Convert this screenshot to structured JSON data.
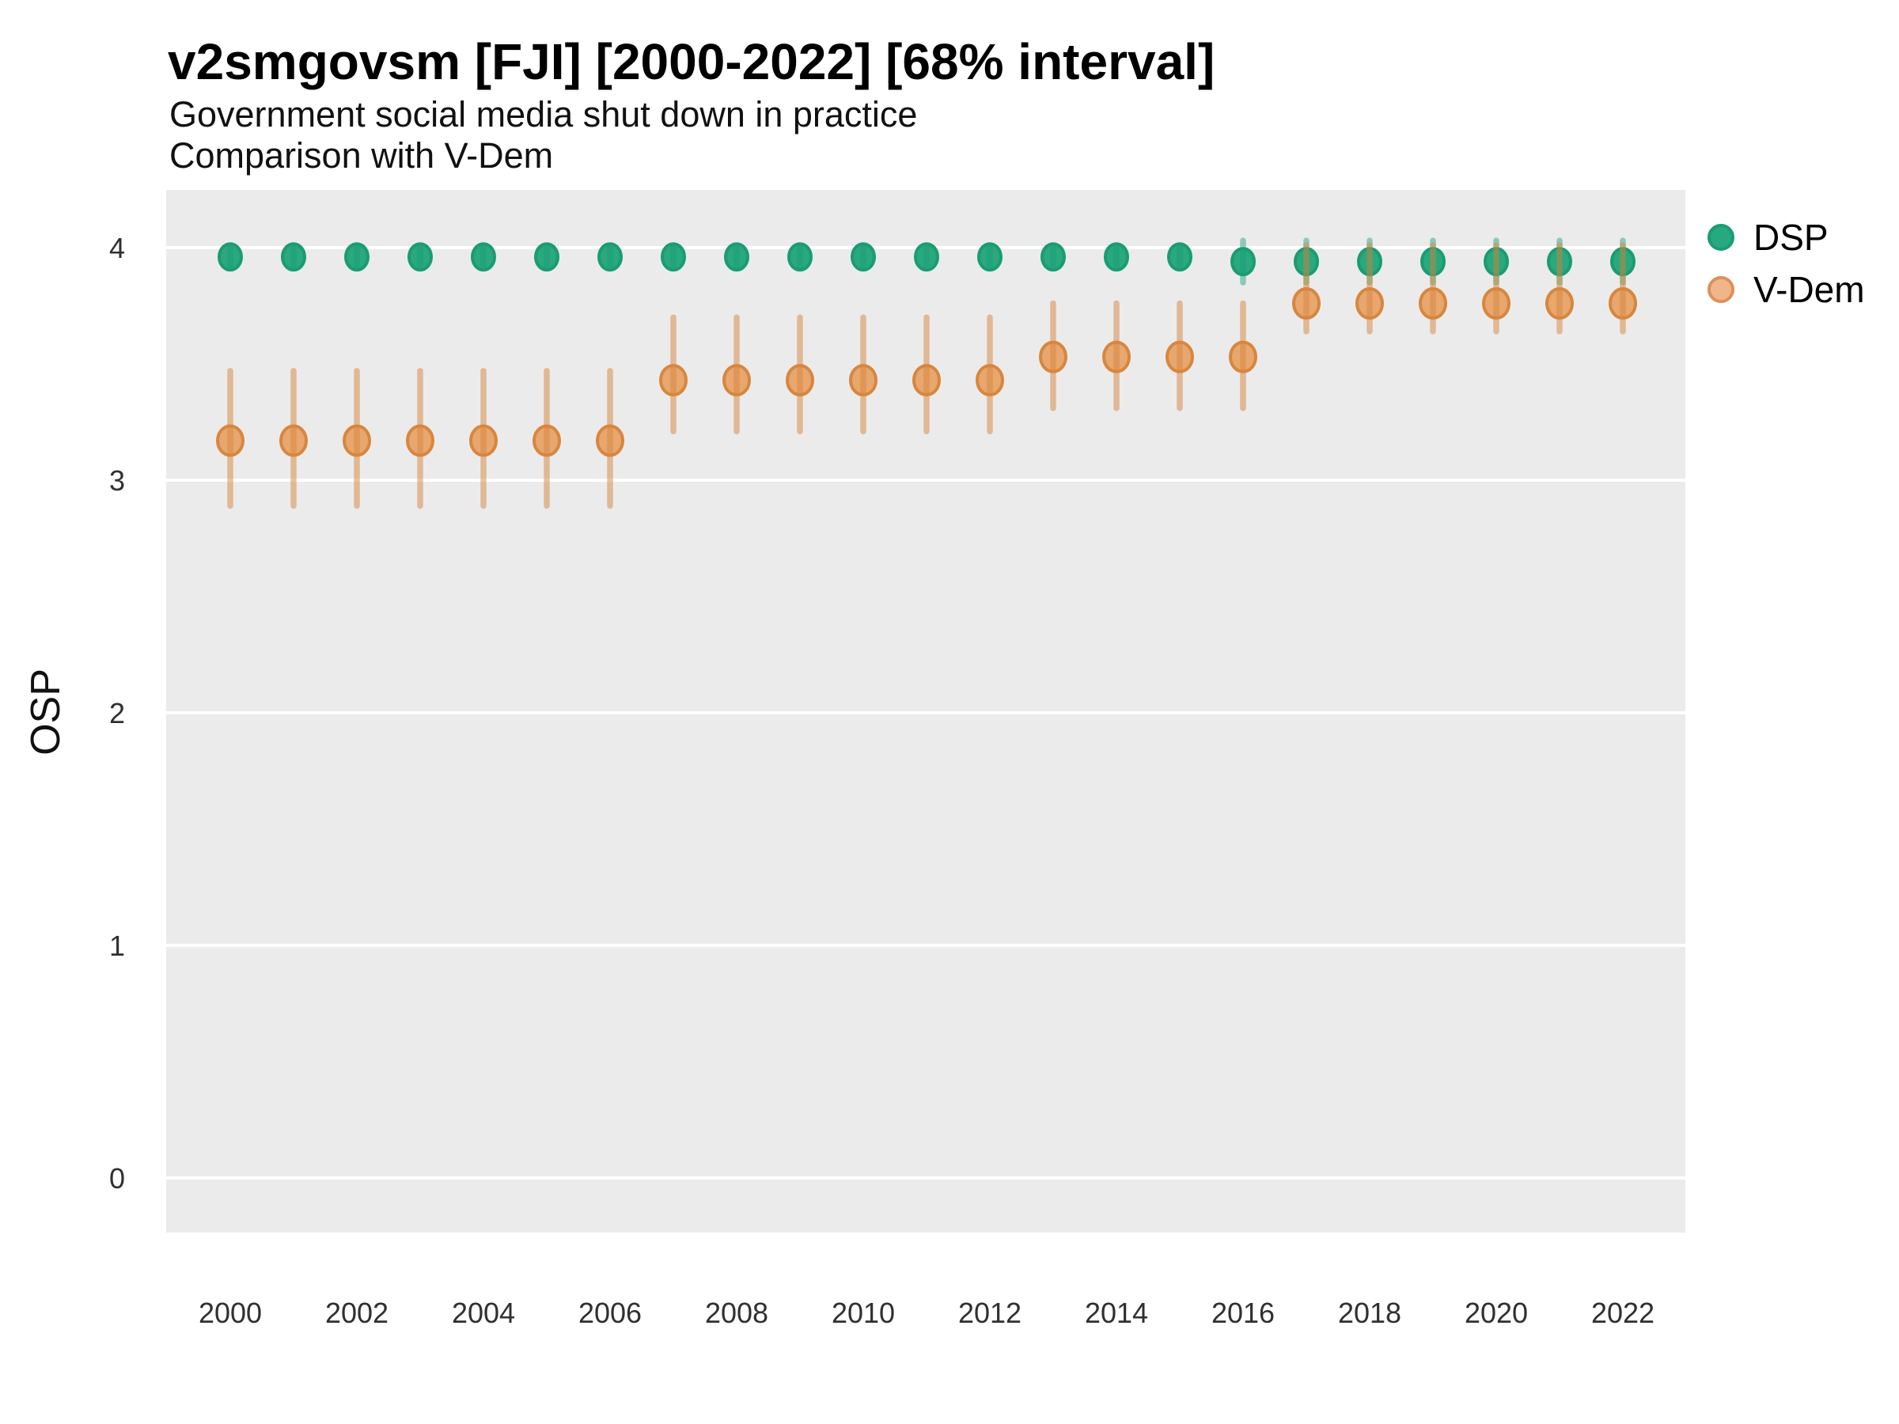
{
  "header": {
    "title": "v2smgovsm [FJI] [2000-2022] [68% interval]",
    "subtitle1": "Government social media shut down in practice",
    "subtitle2": "Comparison with V-Dem"
  },
  "axes": {
    "y_title": "OSP",
    "y_tick_labels": [
      "0",
      "1",
      "2",
      "3",
      "4"
    ],
    "x_tick_labels": [
      "2000",
      "2002",
      "2004",
      "2006",
      "2008",
      "2010",
      "2012",
      "2014",
      "2016",
      "2018",
      "2020",
      "2022"
    ]
  },
  "legend": {
    "entries": [
      {
        "label": "DSP"
      },
      {
        "label": "V-Dem"
      }
    ]
  },
  "colors": {
    "panel_background": "#EBEBEB",
    "gridline": "#FFFFFF",
    "tick_text": "#303030",
    "dsp_fill": "#2AA87E",
    "dsp_stroke": "#1A9C73",
    "dsp_bar": "#1B9E77",
    "vdem_fill": "#E7A76E",
    "vdem_stroke": "#D8863E",
    "vdem_bar": "#D8863E"
  },
  "chart_data": {
    "type": "scatter",
    "title": "v2smgovsm [FJI] [2000-2022] [68% interval]",
    "subtitle": "Government social media shut down in practice — Comparison with V-Dem",
    "xlabel": "",
    "ylabel": "OSP",
    "x": [
      2000,
      2001,
      2002,
      2003,
      2004,
      2005,
      2006,
      2007,
      2008,
      2009,
      2010,
      2011,
      2012,
      2013,
      2014,
      2015,
      2016,
      2017,
      2018,
      2019,
      2020,
      2021,
      2022
    ],
    "x_ticks": [
      2000,
      2002,
      2004,
      2006,
      2008,
      2010,
      2012,
      2014,
      2016,
      2018,
      2020,
      2022
    ],
    "y_ticks": [
      0,
      1,
      2,
      3,
      4
    ],
    "ylim": [
      -0.24,
      4.25
    ],
    "grid": "horizontal-major-only",
    "legend_position": "right",
    "interval": "68%",
    "series": [
      {
        "name": "DSP",
        "values": [
          3.96,
          3.96,
          3.96,
          3.96,
          3.96,
          3.96,
          3.96,
          3.96,
          3.96,
          3.96,
          3.96,
          3.96,
          3.96,
          3.96,
          3.96,
          3.96,
          3.94,
          3.94,
          3.94,
          3.94,
          3.94,
          3.94,
          3.94
        ],
        "lo": [
          3.92,
          3.92,
          3.92,
          3.92,
          3.92,
          3.92,
          3.92,
          3.92,
          3.92,
          3.92,
          3.92,
          3.92,
          3.92,
          3.92,
          3.92,
          3.92,
          3.85,
          3.85,
          3.85,
          3.85,
          3.85,
          3.85,
          3.85
        ],
        "hi": [
          4.0,
          4.0,
          4.0,
          4.0,
          4.0,
          4.0,
          4.0,
          4.0,
          4.0,
          4.0,
          4.0,
          4.0,
          4.0,
          4.0,
          4.0,
          4.0,
          4.03,
          4.03,
          4.03,
          4.03,
          4.03,
          4.03,
          4.03
        ]
      },
      {
        "name": "V-Dem",
        "values": [
          3.17,
          3.17,
          3.17,
          3.17,
          3.17,
          3.17,
          3.17,
          3.43,
          3.43,
          3.43,
          3.43,
          3.43,
          3.43,
          3.53,
          3.53,
          3.53,
          3.53,
          3.76,
          3.76,
          3.76,
          3.76,
          3.76,
          3.76
        ],
        "lo": [
          2.89,
          2.89,
          2.89,
          2.89,
          2.89,
          2.89,
          2.89,
          3.21,
          3.21,
          3.21,
          3.21,
          3.21,
          3.21,
          3.31,
          3.31,
          3.31,
          3.31,
          3.64,
          3.64,
          3.64,
          3.64,
          3.64,
          3.64
        ],
        "hi": [
          3.47,
          3.47,
          3.47,
          3.47,
          3.47,
          3.47,
          3.47,
          3.7,
          3.7,
          3.7,
          3.7,
          3.7,
          3.7,
          3.76,
          3.76,
          3.76,
          3.76,
          4.01,
          4.01,
          4.01,
          4.01,
          4.01,
          4.01
        ]
      }
    ]
  }
}
